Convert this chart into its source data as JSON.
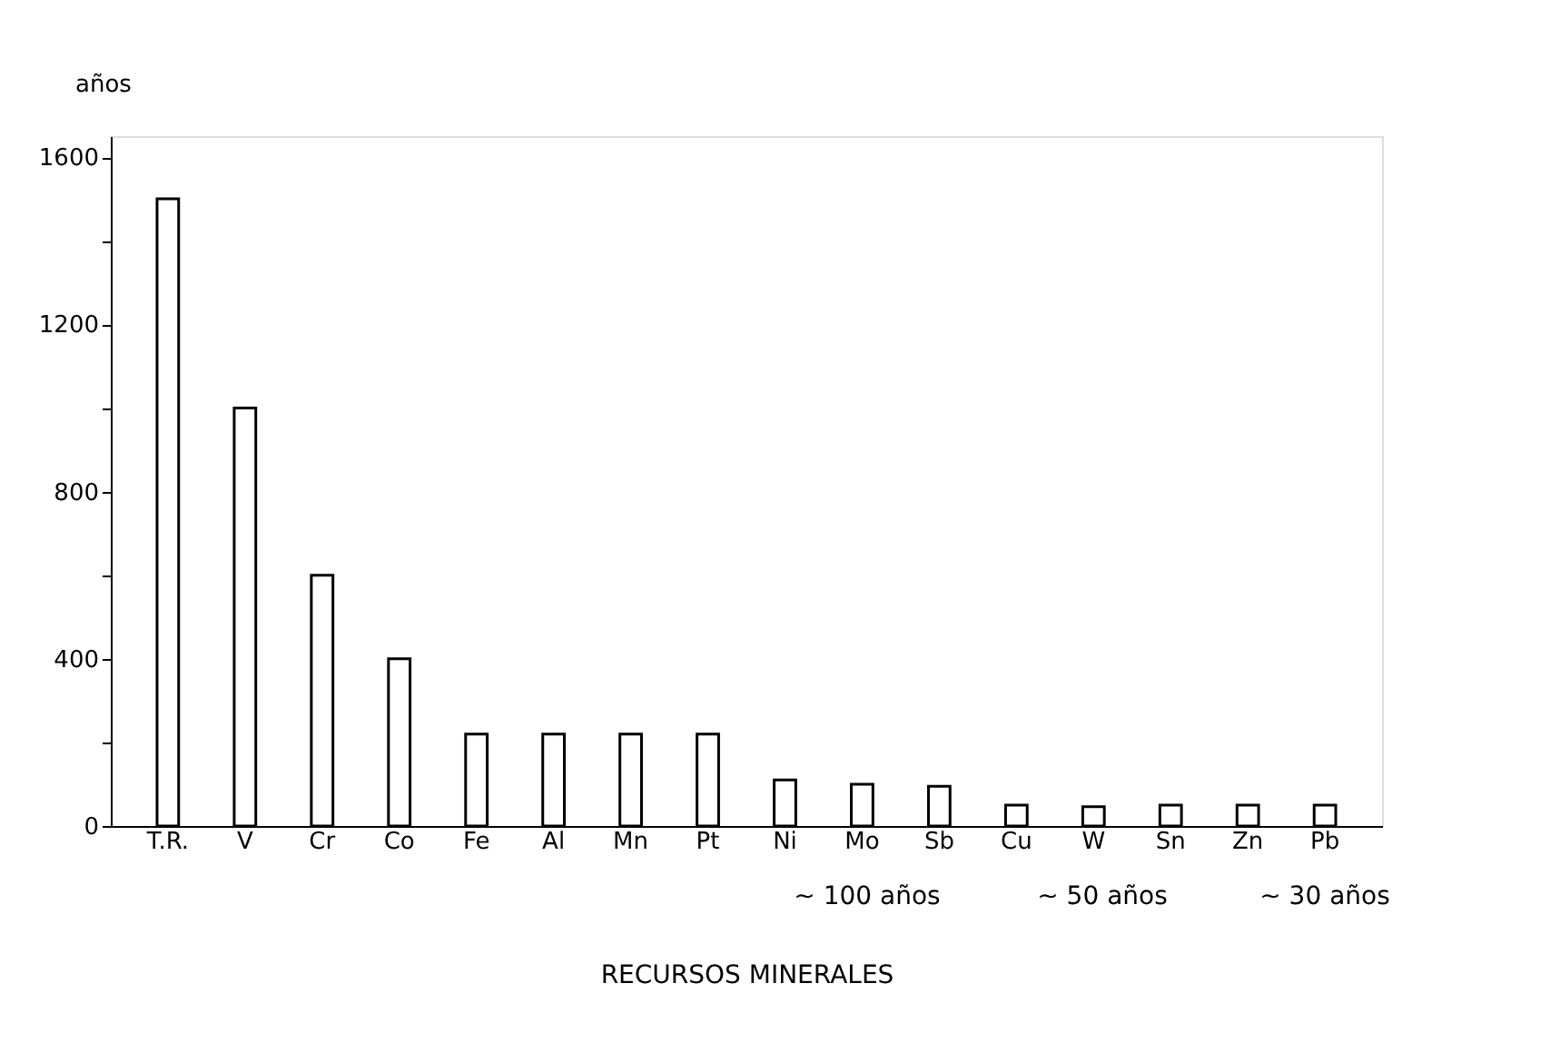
{
  "chart_data": {
    "type": "bar",
    "xlabel": "RECURSOS MINERALES",
    "ylabel": "años",
    "categories": [
      "T.R.",
      "V",
      "Cr",
      "Co",
      "Fe",
      "Al",
      "Mn",
      "Pt",
      "Ni",
      "Mo",
      "Sb",
      "Cu",
      "W",
      "Sn",
      "Zn",
      "Pb"
    ],
    "values": [
      1500,
      1000,
      600,
      400,
      220,
      220,
      220,
      220,
      110,
      100,
      95,
      50,
      46,
      50,
      50,
      50
    ],
    "color": "#ffffff",
    "ylim": [
      0,
      1650
    ],
    "yticks": [
      0,
      {
        "value": 200,
        "label": null
      },
      400,
      {
        "value": 600,
        "label": null
      },
      800,
      {
        "value": 1000,
        "label": null
      },
      1200,
      {
        "value": 1400,
        "label": null
      },
      1600
    ],
    "grid": false,
    "annotations": [
      "~ 100 años",
      "~ 50 años",
      "~ 30 años"
    ]
  }
}
